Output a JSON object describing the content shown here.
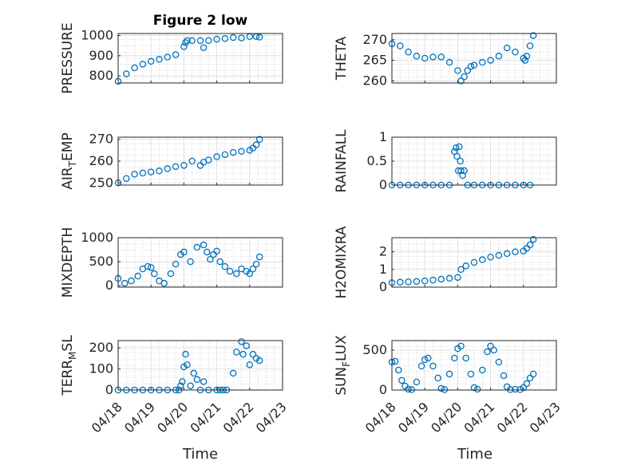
{
  "figure": {
    "title": "Figure 2 low"
  },
  "chart_data": [
    {
      "type": "scatter",
      "ylabel": "PRESSURE",
      "ylim": [
        765,
        1010
      ],
      "yticks": [
        "800",
        "900",
        "1000"
      ],
      "ytick_values": [
        800,
        900,
        1000
      ],
      "title": "Figure 2 low",
      "x": [
        0.0,
        0.25,
        0.5,
        0.75,
        1.0,
        1.25,
        1.5,
        1.75,
        2.0,
        2.05,
        2.1,
        2.25,
        2.5,
        2.6,
        2.75,
        3.0,
        3.25,
        3.5,
        3.75,
        4.0,
        4.2,
        4.3
      ],
      "y": [
        773,
        810,
        840,
        858,
        872,
        882,
        893,
        905,
        945,
        965,
        975,
        975,
        975,
        940,
        975,
        982,
        985,
        990,
        988,
        995,
        995,
        992
      ]
    },
    {
      "type": "scatter",
      "ylabel": "THETA",
      "ylim": [
        259.5,
        271.5
      ],
      "yticks": [
        "260",
        "265",
        "270"
      ],
      "ytick_values": [
        260,
        265,
        270
      ],
      "x": [
        0.0,
        0.25,
        0.5,
        0.75,
        1.0,
        1.25,
        1.5,
        1.75,
        2.0,
        2.1,
        2.2,
        2.3,
        2.4,
        2.5,
        2.75,
        3.0,
        3.25,
        3.5,
        3.75,
        4.0,
        4.05,
        4.1,
        4.2,
        4.3
      ],
      "y": [
        269,
        268.5,
        267,
        266,
        265.5,
        265.8,
        265.8,
        264.5,
        262.5,
        260,
        261,
        262.5,
        263.5,
        263.8,
        264.5,
        265,
        266,
        268,
        267,
        265.5,
        265,
        266,
        268.5,
        271
      ]
    },
    {
      "type": "scatter",
      "ylabel": "AIR_TEMP",
      "ylim": [
        249,
        271
      ],
      "yticks": [
        "250",
        "260",
        "270"
      ],
      "ytick_values": [
        250,
        260,
        270
      ],
      "x": [
        0.0,
        0.25,
        0.5,
        0.75,
        1.0,
        1.25,
        1.5,
        1.75,
        2.0,
        2.25,
        2.5,
        2.6,
        2.75,
        3.0,
        3.25,
        3.5,
        3.75,
        4.0,
        4.1,
        4.2,
        4.3
      ],
      "y": [
        250,
        252,
        254,
        254.5,
        255,
        255.5,
        256.5,
        257.5,
        258,
        260,
        258,
        259.5,
        260.5,
        262,
        263,
        264,
        264.5,
        265,
        266,
        267.5,
        270
      ]
    },
    {
      "type": "scatter",
      "ylabel": "RAINFALL",
      "ylim": [
        0,
        1
      ],
      "yticks": [
        "0",
        "0.5",
        "1"
      ],
      "ytick_values": [
        0,
        0.5,
        1
      ],
      "x": [
        0.0,
        0.25,
        0.5,
        0.75,
        1.0,
        1.25,
        1.5,
        1.75,
        1.9,
        1.95,
        1.98,
        2.02,
        2.05,
        2.08,
        2.1,
        2.15,
        2.2,
        2.3,
        2.5,
        2.75,
        3.0,
        3.25,
        3.5,
        3.75,
        4.0,
        4.2
      ],
      "y": [
        0,
        0,
        0,
        0,
        0,
        0,
        0,
        0,
        0.7,
        0.78,
        0.6,
        0.3,
        0.8,
        0.5,
        0.3,
        0.2,
        0.3,
        0,
        0,
        0,
        0,
        0,
        0,
        0,
        0,
        0
      ]
    },
    {
      "type": "scatter",
      "ylabel": "MIXDEPTH",
      "ylim": [
        -30,
        1000
      ],
      "yticks": [
        "0",
        "500",
        "1000"
      ],
      "ytick_values": [
        0,
        500,
        1000
      ],
      "x": [
        0.0,
        0.2,
        0.4,
        0.6,
        0.75,
        0.9,
        1.0,
        1.1,
        1.25,
        1.4,
        1.6,
        1.75,
        1.9,
        2.0,
        2.2,
        2.4,
        2.6,
        2.7,
        2.8,
        2.9,
        3.0,
        3.1,
        3.25,
        3.4,
        3.6,
        3.75,
        3.9,
        4.0,
        4.1,
        4.2,
        4.3
      ],
      "y": [
        150,
        50,
        100,
        200,
        350,
        400,
        380,
        250,
        100,
        50,
        250,
        450,
        650,
        700,
        500,
        800,
        850,
        700,
        550,
        650,
        720,
        500,
        400,
        300,
        250,
        350,
        300,
        250,
        350,
        450,
        600
      ]
    },
    {
      "type": "scatter",
      "ylabel": "H2OMIXRA",
      "ylim": [
        0,
        2.8
      ],
      "yticks": [
        "0",
        "1",
        "2"
      ],
      "ytick_values": [
        0,
        1,
        2
      ],
      "x": [
        0.0,
        0.25,
        0.5,
        0.75,
        1.0,
        1.25,
        1.5,
        1.75,
        2.0,
        2.1,
        2.25,
        2.5,
        2.75,
        3.0,
        3.25,
        3.5,
        3.75,
        4.0,
        4.1,
        4.2,
        4.3
      ],
      "y": [
        0.25,
        0.28,
        0.3,
        0.32,
        0.35,
        0.4,
        0.45,
        0.5,
        0.55,
        1.0,
        1.2,
        1.4,
        1.55,
        1.7,
        1.8,
        1.9,
        2.0,
        2.05,
        2.2,
        2.4,
        2.7
      ]
    },
    {
      "type": "scatter",
      "ylabel": "TERR_MSL",
      "ylim": [
        0,
        235
      ],
      "yticks": [
        "0",
        "100",
        "200"
      ],
      "ytick_values": [
        0,
        100,
        200
      ],
      "x": [
        0.0,
        0.25,
        0.5,
        0.75,
        1.0,
        1.25,
        1.5,
        1.75,
        1.85,
        1.9,
        1.95,
        2.0,
        2.05,
        2.1,
        2.2,
        2.3,
        2.4,
        2.5,
        2.6,
        2.75,
        3.0,
        3.1,
        3.2,
        3.3,
        3.5,
        3.6,
        3.75,
        3.8,
        3.9,
        4.0,
        4.1,
        4.2,
        4.3
      ],
      "y": [
        0,
        0,
        0,
        0,
        0,
        0,
        0,
        0,
        0,
        20,
        40,
        110,
        170,
        120,
        20,
        80,
        50,
        0,
        40,
        0,
        0,
        0,
        0,
        0,
        80,
        180,
        230,
        170,
        210,
        120,
        170,
        150,
        140
      ]
    },
    {
      "type": "scatter",
      "ylabel": "SUN_FLUX",
      "ylim": [
        0,
        620
      ],
      "yticks": [
        "0",
        "500"
      ],
      "ytick_values": [
        0,
        500
      ],
      "x": [
        0.0,
        0.1,
        0.2,
        0.3,
        0.4,
        0.5,
        0.6,
        0.75,
        0.9,
        1.0,
        1.1,
        1.25,
        1.4,
        1.5,
        1.6,
        1.75,
        1.9,
        2.0,
        2.1,
        2.25,
        2.4,
        2.5,
        2.6,
        2.75,
        2.9,
        3.0,
        3.1,
        3.25,
        3.4,
        3.5,
        3.6,
        3.75,
        3.9,
        4.0,
        4.1,
        4.2,
        4.3
      ],
      "y": [
        350,
        360,
        250,
        120,
        50,
        10,
        5,
        100,
        300,
        380,
        400,
        300,
        150,
        20,
        5,
        200,
        400,
        520,
        550,
        400,
        200,
        30,
        10,
        250,
        480,
        550,
        500,
        350,
        180,
        40,
        5,
        10,
        5,
        30,
        80,
        150,
        200
      ]
    }
  ],
  "xaxis": {
    "label": "Time",
    "ticks": [
      "04/18",
      "04/19",
      "04/20",
      "04/21",
      "04/22",
      "04/23"
    ],
    "xlim": [
      0,
      5
    ]
  },
  "colors": {
    "marker": "#0072bd",
    "grid": "#bdbdbd",
    "axis": "#262626"
  }
}
